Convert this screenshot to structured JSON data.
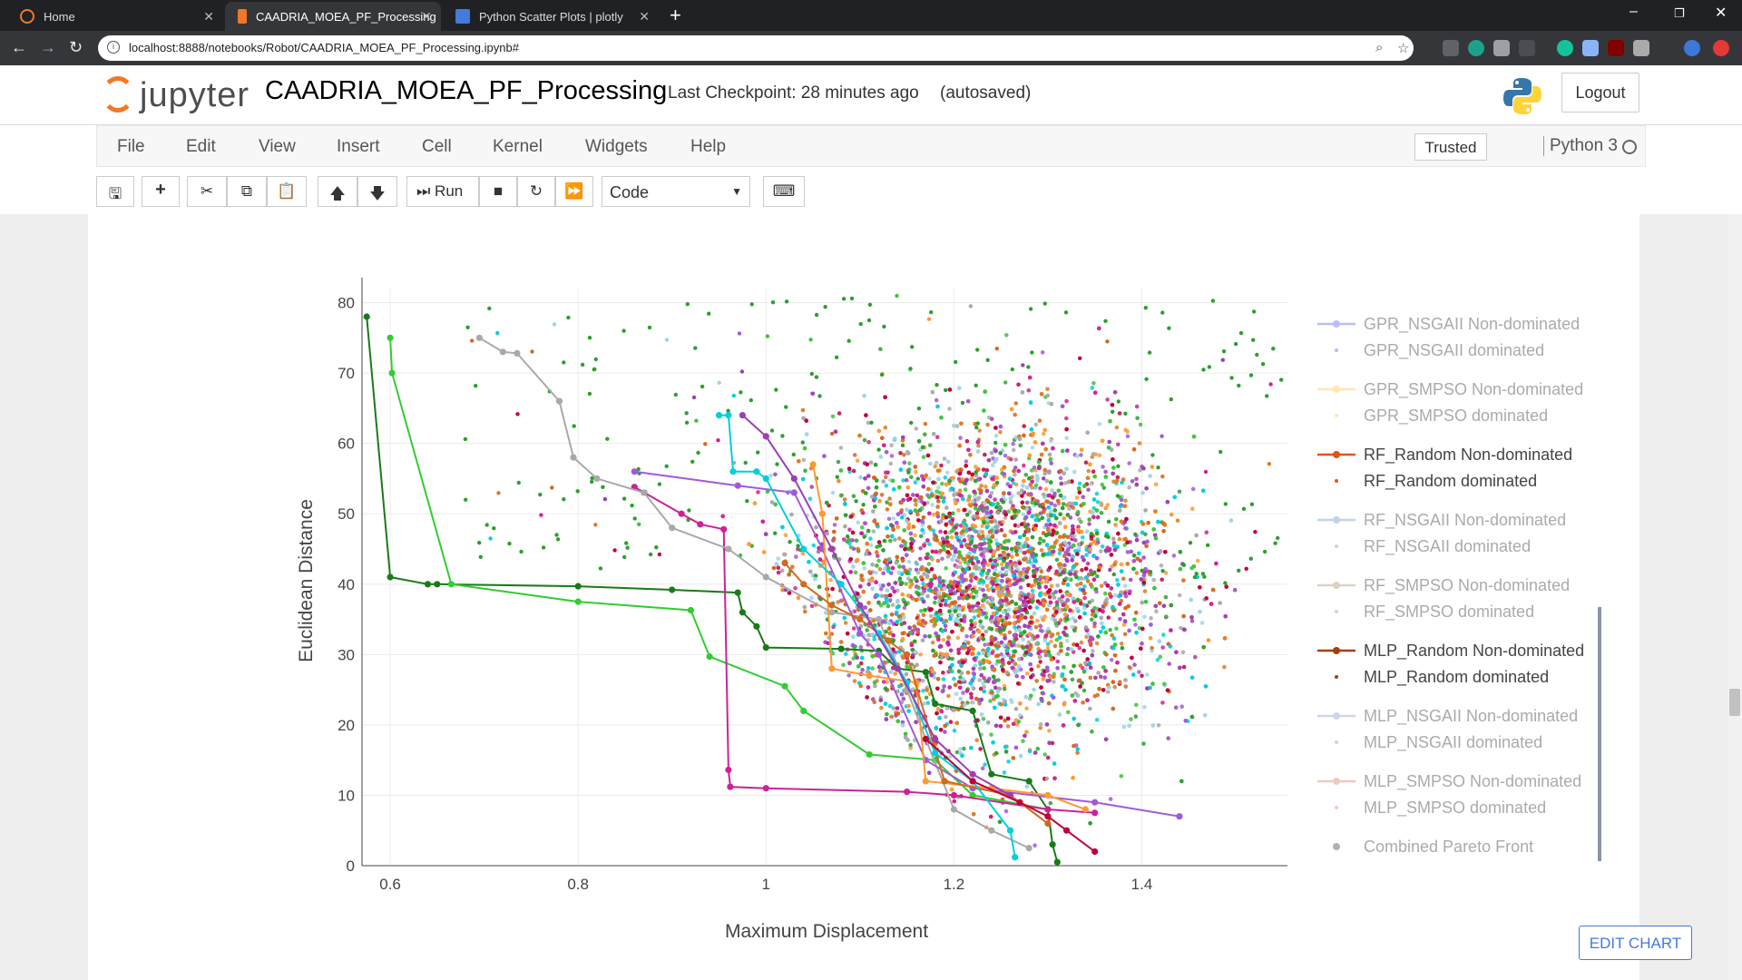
{
  "browser": {
    "tabs": [
      {
        "label": "Home",
        "color": "#f37726"
      },
      {
        "label": "CAADRIA_MOEA_PF_Processing",
        "color": "#f37726",
        "active": true
      },
      {
        "label": "Python Scatter Plots | plotly",
        "color": "#447adb"
      }
    ],
    "url": "localhost:8888/notebooks/Robot/CAADRIA_MOEA_PF_Processing.ipynb#"
  },
  "jupyter": {
    "logo_text": "jupyter",
    "notebook_name": "CAADRIA_MOEA_PF_Processing",
    "checkpoint": "Last Checkpoint: 28 minutes ago",
    "autosave": "(autosaved)",
    "logout": "Logout",
    "menu": [
      "File",
      "Edit",
      "View",
      "Insert",
      "Cell",
      "Kernel",
      "Widgets",
      "Help"
    ],
    "trusted": "Trusted",
    "kernel": "Python 3",
    "toolbar": {
      "run_label": "Run",
      "cell_type": "Code"
    }
  },
  "edit_chart": "EDIT CHART",
  "chart_data": {
    "type": "scatter",
    "xlabel": "Maximum Displacement",
    "ylabel": "Euclidean Distance",
    "xlim": [
      0.57,
      1.555
    ],
    "ylim": [
      0,
      82
    ],
    "x_ticks": [
      "0.6",
      "0.8",
      "1",
      "1.2",
      "1.4"
    ],
    "x_tick_values": [
      0.6,
      0.8,
      1.0,
      1.2,
      1.4
    ],
    "y_ticks": [
      "0",
      "10",
      "20",
      "30",
      "40",
      "50",
      "60",
      "70",
      "80"
    ],
    "y_tick_values": [
      0,
      10,
      20,
      30,
      40,
      50,
      60,
      70,
      80
    ],
    "grid": true,
    "legend_position": "right",
    "legend": [
      {
        "name": "GPR_NSGAII Non-dominated",
        "kind": "line",
        "color": "#636efa",
        "dim": true
      },
      {
        "name": "GPR_NSGAII dominated",
        "kind": "dot",
        "color": "#636efa",
        "dim": true
      },
      {
        "name": "GPR_SMPSO Non-dominated",
        "kind": "line",
        "color": "#fecb52",
        "dim": true
      },
      {
        "name": "GPR_SMPSO dominated",
        "kind": "dot",
        "color": "#fecb52",
        "dim": true
      },
      {
        "name": "RF_Random Non-dominated",
        "kind": "line",
        "color": "#e0541f",
        "dim": false
      },
      {
        "name": "RF_Random dominated",
        "kind": "dot",
        "color": "#e0541f",
        "dim": false
      },
      {
        "name": "RF_NSGAII Non-dominated",
        "kind": "line",
        "color": "#7aa0c8",
        "dim": true
      },
      {
        "name": "RF_NSGAII dominated",
        "kind": "dot",
        "color": "#7aa0c8",
        "dim": true
      },
      {
        "name": "RF_SMPSO Non-dominated",
        "kind": "line",
        "color": "#b39a7a",
        "dim": true
      },
      {
        "name": "RF_SMPSO dominated",
        "kind": "dot",
        "color": "#b39a7a",
        "dim": true
      },
      {
        "name": "MLP_Random Non-dominated",
        "kind": "line",
        "color": "#a0410d",
        "dim": false
      },
      {
        "name": "MLP_Random dominated",
        "kind": "dot",
        "color": "#a0410d",
        "dim": false
      },
      {
        "name": "MLP_NSGAII Non-dominated",
        "kind": "line",
        "color": "#9aa0d6",
        "dim": true
      },
      {
        "name": "MLP_NSGAII dominated",
        "kind": "dot",
        "color": "#9aa0d6",
        "dim": true
      },
      {
        "name": "MLP_SMPSO Non-dominated",
        "kind": "line",
        "color": "#e08a78",
        "dim": true
      },
      {
        "name": "MLP_SMPSO dominated",
        "kind": "dot",
        "color": "#e08a78",
        "dim": true
      },
      {
        "name": "Combined Pareto Front",
        "kind": "bigdot",
        "color": "#555555",
        "dim": true
      }
    ],
    "fronts": [
      {
        "color": "#1a7a1a",
        "points": [
          [
            0.575,
            78
          ],
          [
            0.6,
            41
          ],
          [
            0.64,
            40
          ],
          [
            0.65,
            40
          ],
          [
            0.8,
            39.7
          ],
          [
            0.9,
            39.2
          ],
          [
            0.97,
            38.8
          ],
          [
            0.975,
            36
          ],
          [
            0.99,
            34
          ],
          [
            1.0,
            31
          ],
          [
            1.08,
            30.8
          ],
          [
            1.12,
            30.5
          ],
          [
            1.14,
            28
          ],
          [
            1.17,
            27.5
          ],
          [
            1.18,
            23
          ],
          [
            1.22,
            22
          ],
          [
            1.24,
            13
          ],
          [
            1.28,
            12
          ],
          [
            1.3,
            8
          ],
          [
            1.305,
            3
          ],
          [
            1.31,
            0.5
          ]
        ]
      },
      {
        "color": "#33cc33",
        "points": [
          [
            0.6,
            75
          ],
          [
            0.602,
            70
          ],
          [
            0.665,
            40
          ],
          [
            0.8,
            37.5
          ],
          [
            0.92,
            36.3
          ],
          [
            0.94,
            29.7
          ],
          [
            1.02,
            25.5
          ],
          [
            1.04,
            22
          ],
          [
            1.11,
            15.8
          ],
          [
            1.18,
            15
          ],
          [
            1.22,
            10
          ],
          [
            1.3,
            8
          ]
        ]
      },
      {
        "color": "#cc2299",
        "points": [
          [
            0.86,
            53.8
          ],
          [
            0.91,
            50
          ],
          [
            0.93,
            48.5
          ],
          [
            0.955,
            47.8
          ],
          [
            0.96,
            13.6
          ],
          [
            0.962,
            11.2
          ],
          [
            1.0,
            11
          ],
          [
            1.15,
            10.5
          ],
          [
            1.2,
            10
          ],
          [
            1.3,
            8
          ],
          [
            1.35,
            7.5
          ]
        ]
      },
      {
        "color": "#a9a9a9",
        "points": [
          [
            0.695,
            75
          ],
          [
            0.72,
            73
          ],
          [
            0.735,
            72.8
          ],
          [
            0.78,
            66
          ],
          [
            0.795,
            58
          ],
          [
            0.82,
            55
          ],
          [
            0.87,
            53
          ],
          [
            0.9,
            48
          ],
          [
            0.96,
            45
          ],
          [
            1.0,
            41
          ],
          [
            1.07,
            36
          ],
          [
            1.12,
            35
          ],
          [
            1.15,
            25
          ],
          [
            1.17,
            18
          ],
          [
            1.2,
            8
          ],
          [
            1.24,
            5
          ],
          [
            1.28,
            2.5
          ]
        ]
      },
      {
        "color": "#a259d9",
        "points": [
          [
            0.86,
            56
          ],
          [
            0.97,
            54
          ],
          [
            1.03,
            53
          ],
          [
            1.06,
            45
          ],
          [
            1.1,
            33
          ],
          [
            1.12,
            30
          ],
          [
            1.17,
            15
          ],
          [
            1.22,
            11
          ],
          [
            1.35,
            9
          ],
          [
            1.44,
            7
          ]
        ]
      },
      {
        "color": "#ff9933",
        "points": [
          [
            1.05,
            57
          ],
          [
            1.06,
            50
          ],
          [
            1.07,
            28
          ],
          [
            1.11,
            27
          ],
          [
            1.16,
            26
          ],
          [
            1.17,
            12
          ],
          [
            1.24,
            11
          ],
          [
            1.3,
            10
          ],
          [
            1.34,
            8
          ]
        ]
      },
      {
        "color": "#d2691e",
        "points": [
          [
            1.02,
            43
          ],
          [
            1.04,
            40
          ],
          [
            1.07,
            37
          ],
          [
            1.1,
            35
          ],
          [
            1.13,
            32
          ],
          [
            1.15,
            30
          ],
          [
            1.19,
            12
          ],
          [
            1.26,
            10
          ],
          [
            1.3,
            6
          ]
        ]
      },
      {
        "color": "#00cfe0",
        "points": [
          [
            0.95,
            64
          ],
          [
            0.96,
            64
          ],
          [
            0.965,
            56
          ],
          [
            0.99,
            56
          ],
          [
            1.0,
            55
          ],
          [
            1.04,
            45
          ],
          [
            1.08,
            40
          ],
          [
            1.12,
            33
          ],
          [
            1.15,
            26
          ],
          [
            1.18,
            16
          ],
          [
            1.22,
            12
          ],
          [
            1.26,
            5
          ],
          [
            1.265,
            1.2
          ]
        ]
      },
      {
        "color": "#9c3fb2",
        "points": [
          [
            0.975,
            64
          ],
          [
            1.0,
            61
          ],
          [
            1.03,
            55
          ],
          [
            1.07,
            45
          ],
          [
            1.1,
            37
          ],
          [
            1.14,
            28
          ],
          [
            1.18,
            18
          ],
          [
            1.22,
            13
          ],
          [
            1.26,
            10
          ]
        ]
      },
      {
        "color": "#c0003a",
        "points": [
          [
            1.17,
            18
          ],
          [
            1.22,
            12
          ],
          [
            1.27,
            9
          ],
          [
            1.3,
            7
          ],
          [
            1.32,
            5
          ],
          [
            1.35,
            2
          ]
        ]
      }
    ],
    "cloud_colors": [
      "#d2691e",
      "#e07a1e",
      "#2ca02c",
      "#3cc33c",
      "#00cfe0",
      "#a259d9",
      "#cc2299",
      "#c0003a",
      "#ff9933",
      "#9c3fb2",
      "#9fd5e8",
      "#a9a9a9"
    ],
    "cloud_center": [
      1.24,
      40
    ],
    "cloud_point_count": 5200,
    "sparse_point_count": 260
  }
}
